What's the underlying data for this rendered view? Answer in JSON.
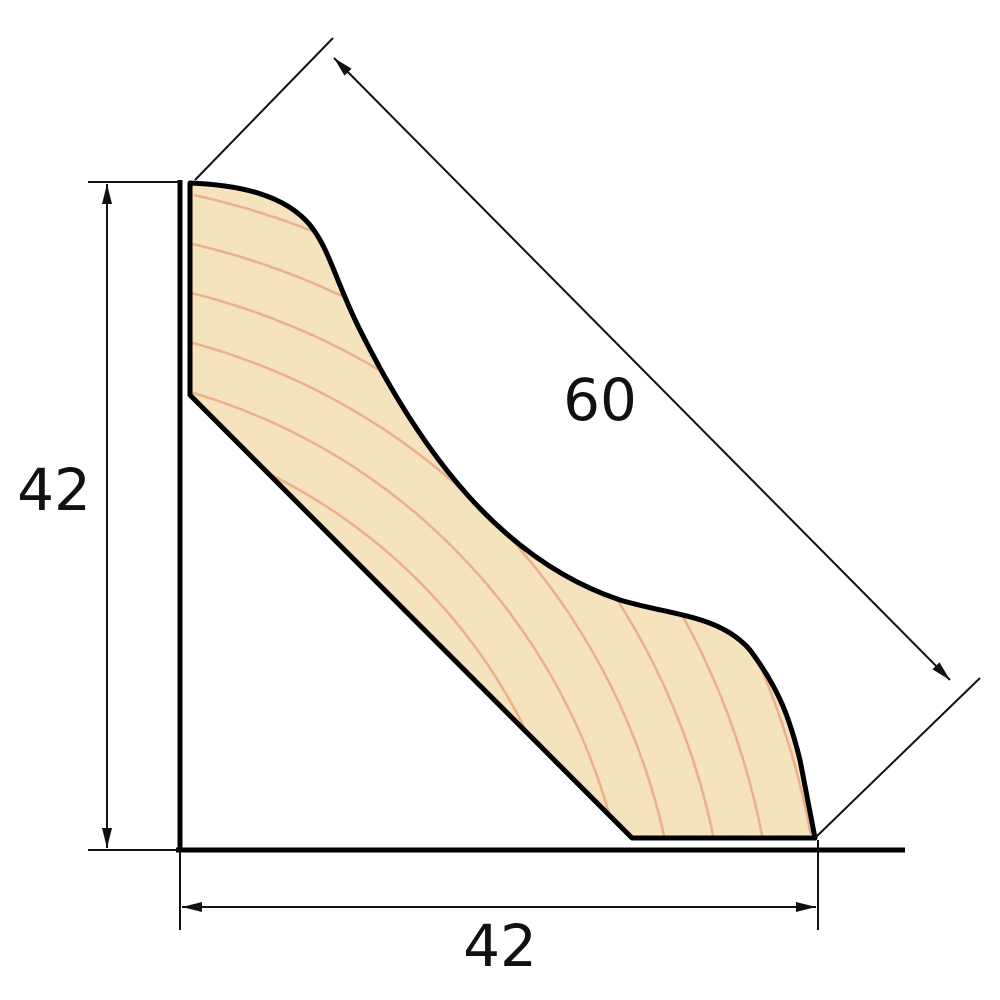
{
  "dimensions": {
    "height_label": "42",
    "width_label": "42",
    "face_label": "60"
  },
  "colors": {
    "wood_fill": "#f4e3bd",
    "grain": "#e9a27f",
    "outline": "#000000",
    "dimension_line": "#111111"
  }
}
